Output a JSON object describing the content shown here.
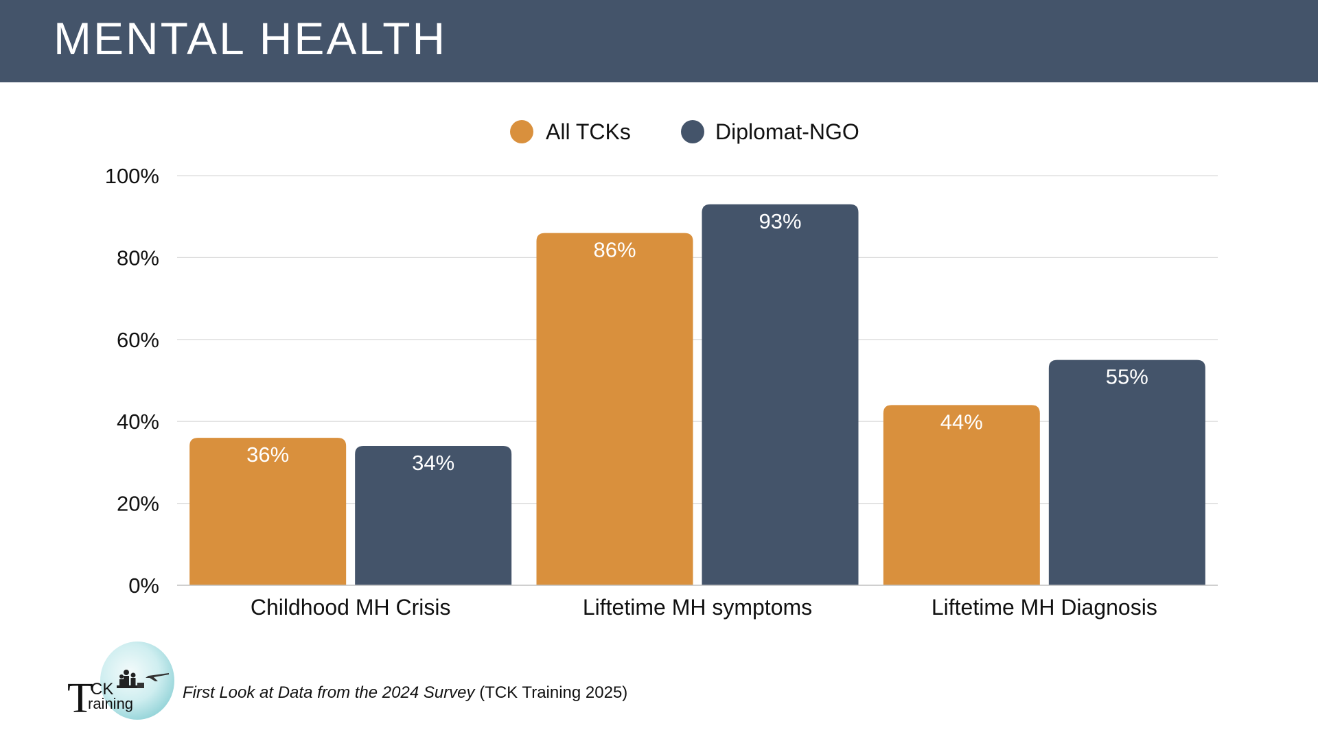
{
  "header": {
    "title": "MENTAL HEALTH"
  },
  "chart_data": {
    "type": "bar",
    "title": "",
    "xlabel": "",
    "ylabel": "",
    "categories": [
      "Childhood MH Crisis",
      "Liftetime MH symptoms",
      "Liftetime MH Diagnosis"
    ],
    "series": [
      {
        "name": "All TCKs",
        "values": [
          36,
          86,
          44
        ],
        "labels": [
          "36%",
          "86%",
          "44%"
        ],
        "color": "#d9903d"
      },
      {
        "name": "Diplomat-NGO",
        "values": [
          34,
          93,
          55
        ],
        "labels": [
          "34%",
          "93%",
          "55%"
        ],
        "color": "#44546a"
      }
    ],
    "ylim": [
      0,
      100
    ],
    "yticks": [
      0,
      20,
      40,
      60,
      80,
      100
    ],
    "ytick_labels": [
      "0%",
      "20%",
      "40%",
      "60%",
      "80%",
      "100%"
    ],
    "grid": true,
    "legend_position": "top-center",
    "gridline_color": "#d9d9d9",
    "baseline_color": "#bfbfbf"
  },
  "footer": {
    "logo_big_letter": "T",
    "logo_ck": "CK",
    "logo_raining": "raining",
    "source_italic": "First Look at Data from the 2024 Survey",
    "source_plain": " (TCK Training 2025)"
  }
}
